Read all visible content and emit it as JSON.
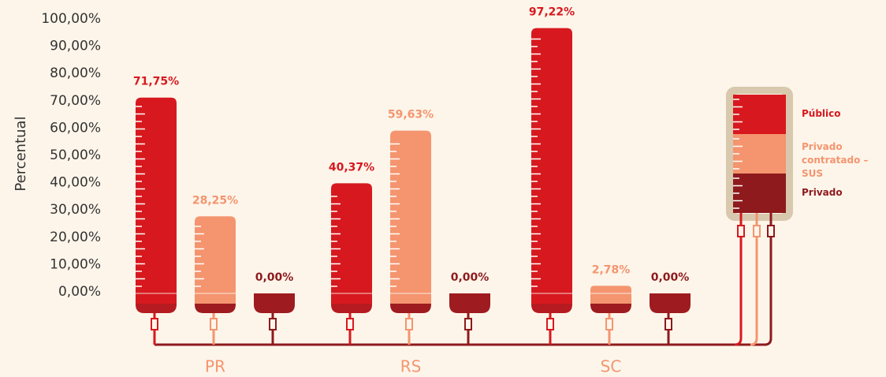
{
  "chart_data": {
    "type": "bar",
    "y_label": "Percentual",
    "categories": [
      "PR",
      "RS",
      "SC"
    ],
    "series": [
      {
        "name": "Público",
        "color": "#d7191f",
        "values": [
          71.75,
          40.37,
          97.22
        ],
        "value_labels": [
          "71,75%",
          "40,37%",
          "97,22%"
        ]
      },
      {
        "name": "Privado contratado – SUS",
        "color": "#f4956f",
        "values": [
          28.25,
          59.63,
          2.78
        ],
        "value_labels": [
          "28,25%",
          "59,63%",
          "2,78%"
        ]
      },
      {
        "name": "Privado",
        "color": "#8e1a1d",
        "values": [
          0,
          0,
          0
        ],
        "value_labels": [
          "0,00%",
          "0,00%",
          "0,00%"
        ]
      }
    ],
    "ylim": [
      0,
      100
    ],
    "yticks": [
      {
        "value": 0,
        "label": "0,00%"
      },
      {
        "value": 10,
        "label": "10,00%"
      },
      {
        "value": 20,
        "label": "20,00%"
      },
      {
        "value": 30,
        "label": "30,00%"
      },
      {
        "value": 40,
        "label": "40,00%"
      },
      {
        "value": 50,
        "label": "50,00%"
      },
      {
        "value": 60,
        "label": "60,00%"
      },
      {
        "value": 70,
        "label": "70,00%"
      },
      {
        "value": 80,
        "label": "80,00%"
      },
      {
        "value": 90,
        "label": "90,00%"
      },
      {
        "value": 100,
        "label": "100,00%"
      }
    ]
  }
}
